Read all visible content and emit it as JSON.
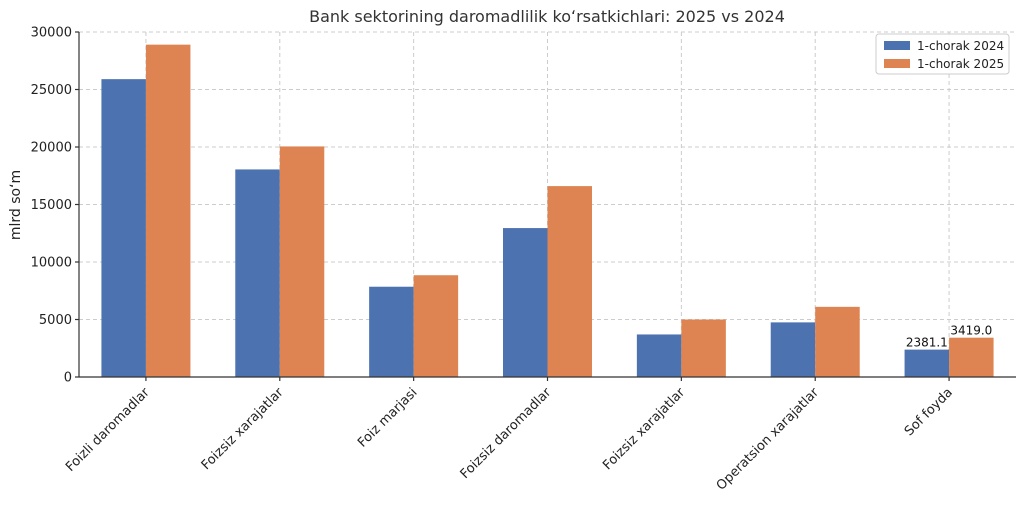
{
  "chart_data": {
    "type": "bar",
    "title": "Bank sektorining daromadlilik koʻrsatkichlari: 2025 vs 2024",
    "xlabel": "",
    "ylabel": "mlrd soʻm",
    "ylim": [
      0,
      30000
    ],
    "yticks": [
      0,
      5000,
      10000,
      15000,
      20000,
      25000,
      30000
    ],
    "grid": true,
    "legend_position": "top-right",
    "categories": [
      "Foizli daromadlar",
      "Foizsiz xarajatlar",
      "Foiz marjasi",
      "Foizsiz daromadlar",
      "Foizsiz xarajatlar",
      "Operatsion xarajatlar",
      "Sof foyda"
    ],
    "series": [
      {
        "name": "1-chorak 2024",
        "color": "#4c72b0",
        "values": [
          25900,
          18050,
          7850,
          12950,
          3700,
          4750,
          2381.1
        ]
      },
      {
        "name": "1-chorak 2025",
        "color": "#dd8452",
        "values": [
          28900,
          20050,
          8850,
          16600,
          5000,
          6100,
          3419.0
        ]
      }
    ],
    "data_labels": [
      {
        "category_index": 6,
        "series_index": 0,
        "text": "2381.1"
      },
      {
        "category_index": 6,
        "series_index": 1,
        "text": "3419.0"
      }
    ]
  }
}
